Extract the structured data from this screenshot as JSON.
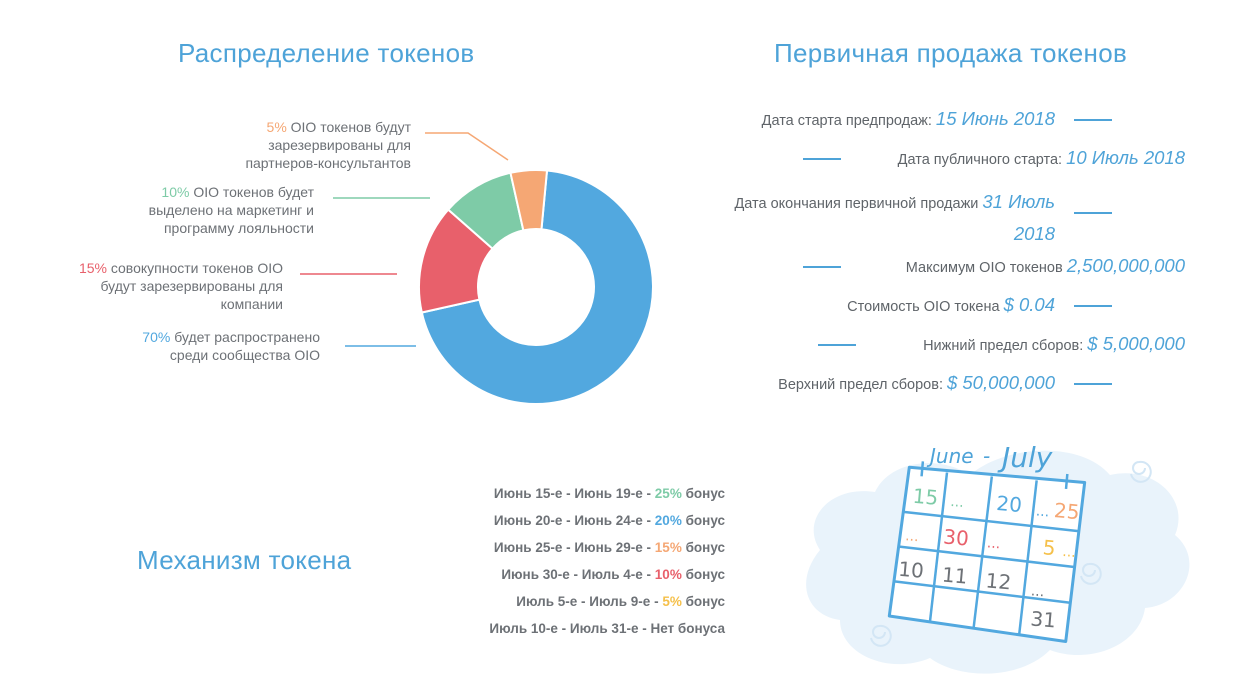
{
  "distribution": {
    "title": "Распределение токенов",
    "colors": {
      "green": "#7ecba7",
      "orange": "#f5a774",
      "red": "#e8606b",
      "blue": "#52a8df"
    },
    "items": [
      {
        "percent": "5%",
        "text_line1": " OIO токенов будут",
        "text_line2": "зарезервированы для",
        "text_line3": "партнеров-консультантов",
        "color": "#f5a774"
      },
      {
        "percent": "10%",
        "text_line1": " OIO токенов будет",
        "text_line2": "выделено на маркетинг и",
        "text_line3": "программу лояльности",
        "color": "#7ecba7"
      },
      {
        "percent": "15%",
        "text_line1": " совокупности токенов OIO",
        "text_line2": "будут зарезервированы для",
        "text_line3": "компании",
        "color": "#e8606b"
      },
      {
        "percent": "70%",
        "text_line1": " будет распространено",
        "text_line2": "среди сообщества OIO",
        "text_line3": "",
        "color": "#52a8df"
      }
    ],
    "donut_shares": [
      70,
      15,
      10,
      5
    ]
  },
  "sale": {
    "title": "Первичная продажа токенов",
    "rows": [
      {
        "label": "Дата старта предпродаж:",
        "value": "15 Июнь 2018"
      },
      {
        "label": "Дата публичного старта:",
        "value": "10 Июль 2018"
      },
      {
        "label": "Дата окончания первичной продажи",
        "value": "31 Июль",
        "value2": "2018"
      },
      {
        "label": "Максимум OIO токенов",
        "value": "2,500,000,000"
      },
      {
        "label": "Стоимость OIO токена",
        "value": "$ 0.04"
      },
      {
        "label": "Нижний предел сборов:",
        "value": "$ 5,000,000"
      },
      {
        "label": "Верхний предел сборов:",
        "value": "$ 50,000,000"
      }
    ]
  },
  "mechanism": {
    "title": "Механизм токена",
    "rows": [
      {
        "period": "Июнь 15-е - Июнь 19-е - ",
        "pct": "25%",
        "suffix": " бонус",
        "color": "#7ecba7"
      },
      {
        "period": "Июнь 20-е - Июнь 24-е - ",
        "pct": "20%",
        "suffix": " бонус",
        "color": "#52a8df"
      },
      {
        "period": "Июнь 25-е - Июнь 29-е - ",
        "pct": "15%",
        "suffix": " бонус",
        "color": "#f5a774"
      },
      {
        "period": "Июнь 30-е - Июль 4-е - ",
        "pct": "10%",
        "suffix": " бонус",
        "color": "#e8606b"
      },
      {
        "period": "Июль 5-е - Июль 9-е - ",
        "pct": "5%",
        "suffix": " бонус",
        "color": "#f5c04a"
      },
      {
        "period": "Июль 10-е - Июль 31-е - Нет бонуса",
        "pct": "",
        "suffix": "",
        "color": "#6d7176"
      }
    ]
  },
  "calendar": {
    "heading_left": "June",
    "heading_dash": "-",
    "heading_right": "July",
    "numbers": [
      "15",
      "...",
      "20",
      "...",
      "25",
      "...",
      "30",
      "...",
      "5",
      "...",
      "10",
      "11",
      "12",
      "...",
      "31"
    ]
  }
}
